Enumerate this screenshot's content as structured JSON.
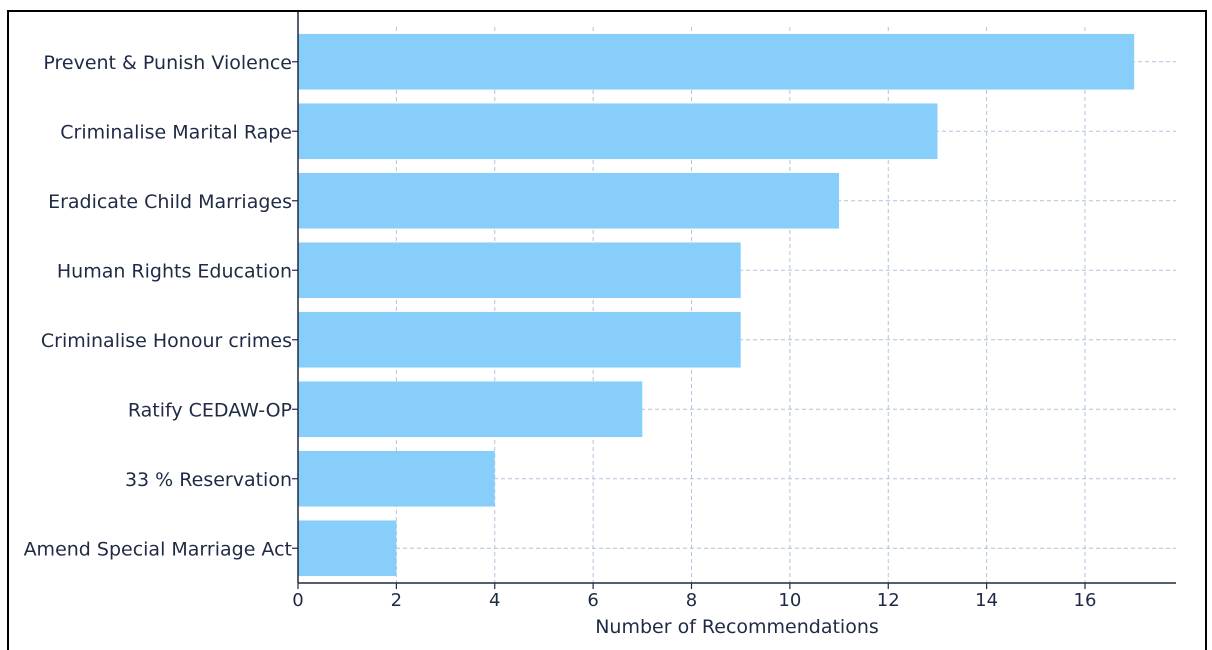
{
  "chart_data": {
    "type": "bar",
    "orientation": "horizontal",
    "title": "",
    "xlabel": "Number of Recommendations",
    "ylabel": "",
    "categories": [
      "Prevent & Punish Violence",
      "Criminalise Marital Rape",
      "Eradicate Child Marriages",
      "Human Rights Education",
      "Criminalise Honour crimes",
      "Ratify CEDAW-OP",
      "33 % Reservation",
      "Amend Special Marriage Act"
    ],
    "values": [
      17,
      13,
      11,
      9,
      9,
      7,
      4,
      2
    ],
    "xlim": [
      0,
      17.85
    ],
    "xticks": [
      0,
      2,
      4,
      6,
      8,
      10,
      12,
      14,
      16
    ],
    "grid": true,
    "bar_color": "#87cefa",
    "grid_color": "#b0c4de"
  }
}
